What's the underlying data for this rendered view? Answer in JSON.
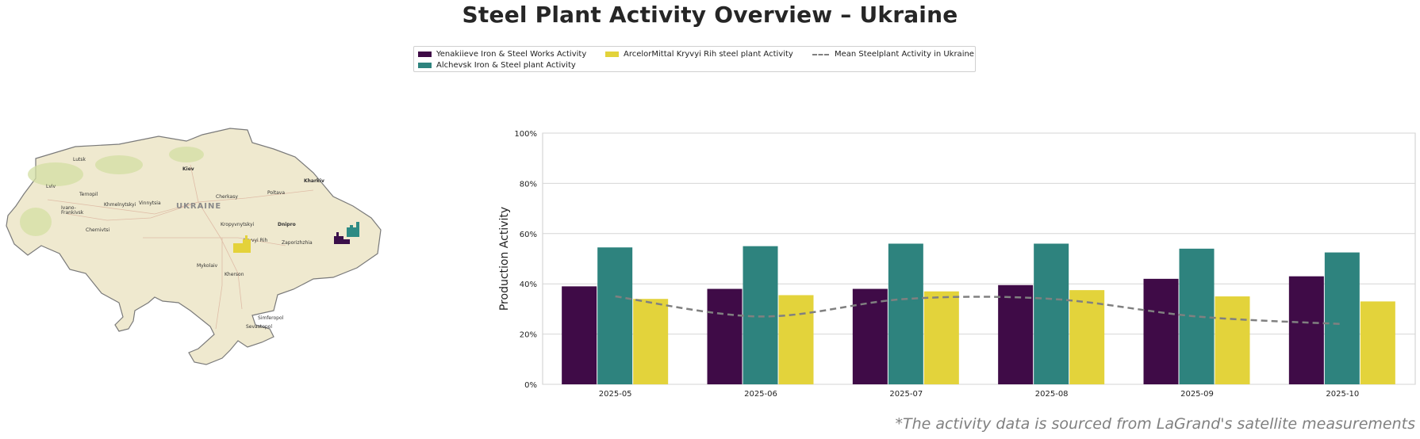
{
  "title": "Steel Plant Activity Overview – Ukraine",
  "footnote": "*The activity data is sourced from LaGrand's satellite measurements",
  "legend": {
    "yenakiieve": "Yenakiieve Iron & Steel Works Activity",
    "alchevsk": "Alchevsk Iron & Steel plant Activity",
    "arcelor": "ArcelorMittal Kryvyi Rih steel plant Activity",
    "mean": "Mean Steelplant Activity in Ukraine"
  },
  "map": {
    "country_label": "UKRAINE",
    "cities": [
      "Lutsk",
      "Kiev",
      "Kharkiv",
      "Lviv",
      "Ternopil",
      "Khmelnytskyi",
      "Vinnytsia",
      "Cherkasy",
      "Poltava",
      "Ivano-Frankivsk",
      "Chernivtsi",
      "Kropyvnytskyi",
      "Dnipro",
      "Kryvyi Rih",
      "Zaporizhzhia",
      "Mykolaiv",
      "Kherson",
      "Simferopol",
      "Sevastopol"
    ],
    "marker_colors": {
      "yenakiieve": "#3b0f4a",
      "alchevsk": "#2e8b84",
      "arcelor": "#e4d23a"
    }
  },
  "chart_data": {
    "type": "bar",
    "categories": [
      "2025-05",
      "2025-06",
      "2025-07",
      "2025-08",
      "2025-09",
      "2025-10"
    ],
    "series": [
      {
        "name": "Yenakiieve Iron & Steel Works Activity",
        "color": "#3f0b47",
        "values": [
          39,
          38,
          38,
          39.5,
          42,
          43
        ]
      },
      {
        "name": "Alchevsk Iron & Steel plant Activity",
        "color": "#2e837e",
        "values": [
          54.5,
          55,
          56,
          56,
          54,
          52.5
        ]
      },
      {
        "name": "ArcelorMittal Kryvyi Rih steel plant Activity",
        "color": "#e3d33b",
        "values": [
          34,
          35.5,
          37,
          37.5,
          35,
          33
        ]
      }
    ],
    "line": {
      "name": "Mean Steelplant Activity in Ukraine",
      "color": "#808080",
      "values": [
        35,
        27,
        34,
        34,
        27,
        24
      ]
    },
    "ylabel": "Production Activity",
    "yticks": [
      "0%",
      "20%",
      "40%",
      "60%",
      "80%",
      "100%"
    ],
    "ylim": [
      0,
      100
    ],
    "grid": true
  }
}
